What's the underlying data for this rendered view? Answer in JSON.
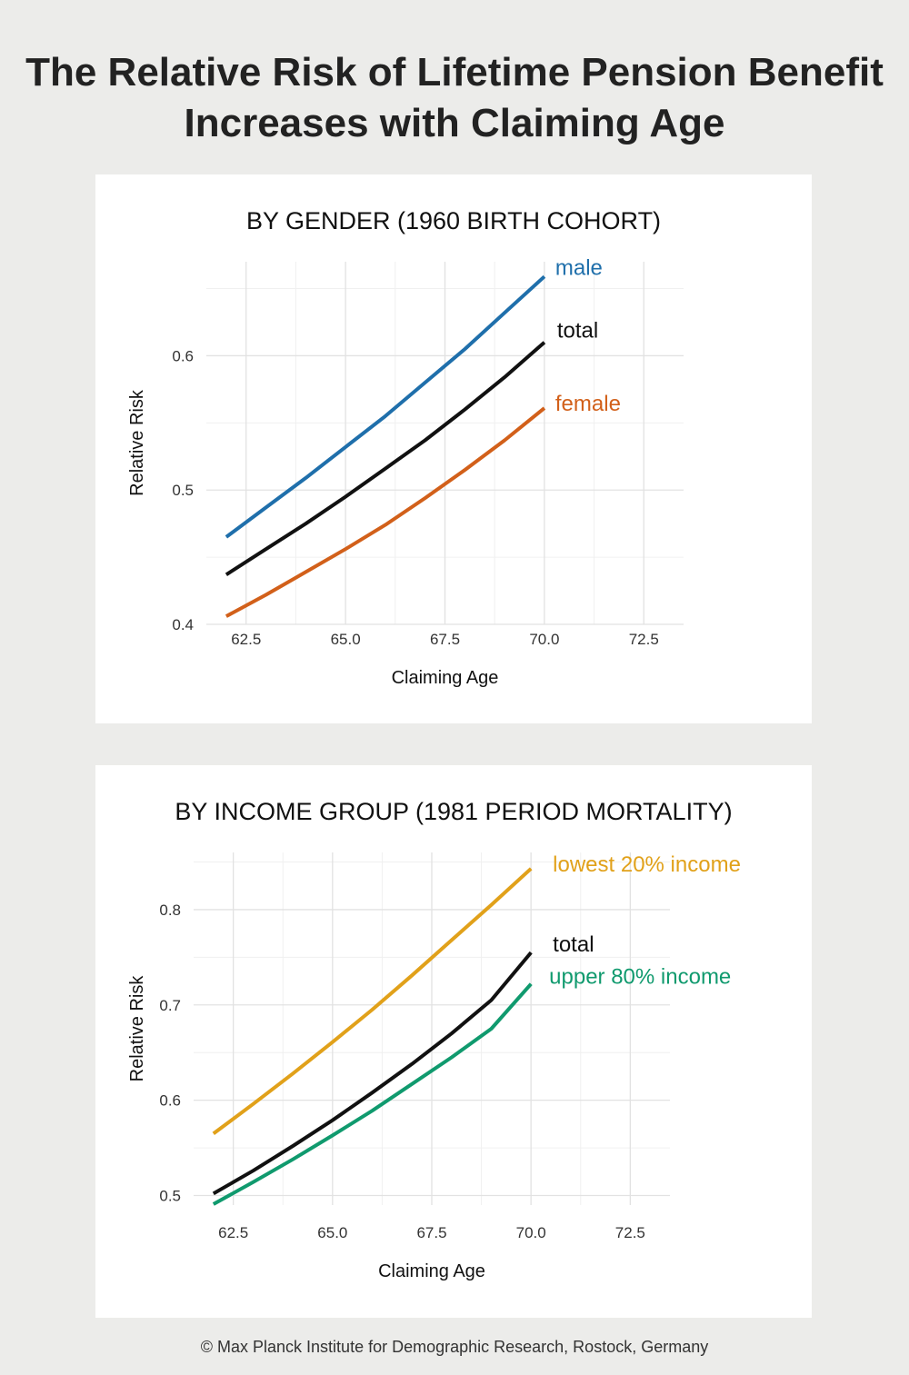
{
  "title_line1": "The Relative Risk of Lifetime Pension Benefit",
  "title_line2": "Increases with Claiming Age",
  "footer": "© Max Planck Institute for Demographic Research, Rostock, Germany",
  "chart_data": [
    {
      "type": "line",
      "title": "BY GENDER (1960 BIRTH COHORT)",
      "xlabel": "Claiming Age",
      "ylabel": "Relative Risk",
      "xlim": [
        61.5,
        73.5
      ],
      "ylim": [
        0.4,
        0.67
      ],
      "xticks": [
        "62.5",
        "65.0",
        "67.5",
        "70.0",
        "72.5"
      ],
      "yticks": [
        "0.4",
        "0.5",
        "0.6"
      ],
      "grid": true,
      "legend": "direct labels at line ends",
      "x": [
        62,
        63,
        64,
        65,
        66,
        67,
        68,
        69,
        70
      ],
      "series": [
        {
          "name": "male",
          "color": "#1f6fab",
          "values": [
            0.465,
            0.487,
            0.509,
            0.532,
            0.555,
            0.58,
            0.605,
            0.632,
            0.659
          ]
        },
        {
          "name": "total",
          "color": "#111111",
          "values": [
            0.437,
            0.456,
            0.475,
            0.495,
            0.516,
            0.537,
            0.56,
            0.584,
            0.61
          ]
        },
        {
          "name": "female",
          "color": "#d2601a",
          "values": [
            0.406,
            0.422,
            0.439,
            0.456,
            0.474,
            0.494,
            0.515,
            0.537,
            0.561
          ]
        }
      ]
    },
    {
      "type": "line",
      "title": "BY INCOME GROUP (1981 PERIOD MORTALITY)",
      "xlabel": "Claiming Age",
      "ylabel": "Relative Risk",
      "xlim": [
        61.5,
        73.5
      ],
      "ylim": [
        0.49,
        0.86
      ],
      "xticks": [
        "62.5",
        "65.0",
        "67.5",
        "70.0",
        "72.5"
      ],
      "yticks": [
        "0.5",
        "0.6",
        "0.7",
        "0.8"
      ],
      "grid": true,
      "legend": "direct labels at line ends",
      "x": [
        62,
        63,
        64,
        65,
        66,
        67,
        68,
        69,
        70
      ],
      "series": [
        {
          "name": "lowest 20% income",
          "color": "#e1a11a",
          "values": [
            0.565,
            0.596,
            0.628,
            0.661,
            0.695,
            0.731,
            0.768,
            0.805,
            0.843
          ]
        },
        {
          "name": "total",
          "color": "#111111",
          "values": [
            0.502,
            0.526,
            0.552,
            0.579,
            0.608,
            0.638,
            0.67,
            0.705,
            0.755
          ]
        },
        {
          "name": "upper 80% income",
          "color": "#109a6e",
          "values": [
            0.491,
            0.514,
            0.538,
            0.563,
            0.589,
            0.617,
            0.645,
            0.675,
            0.722
          ]
        }
      ]
    }
  ]
}
